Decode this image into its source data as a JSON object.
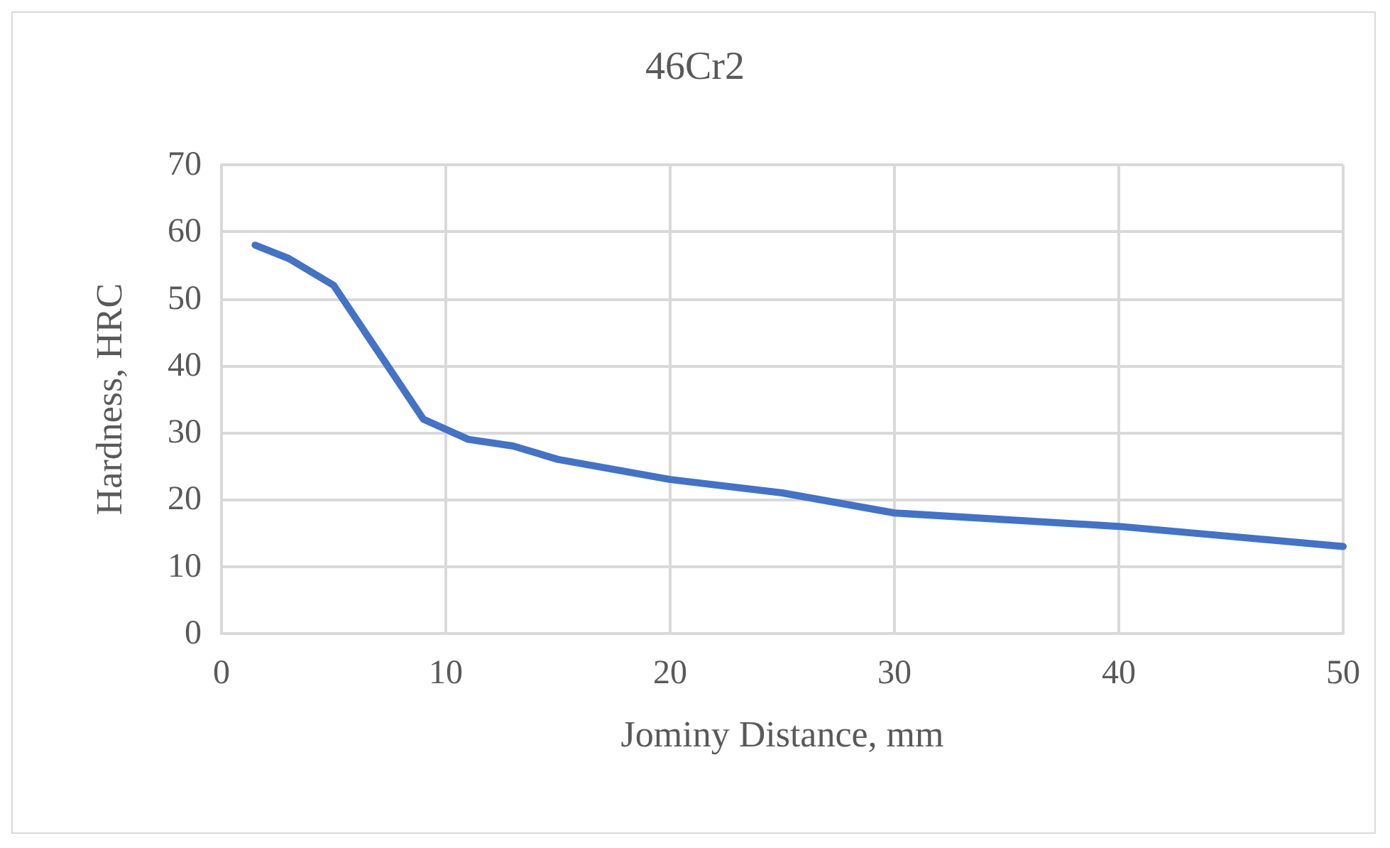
{
  "chart_data": {
    "type": "line",
    "title": "46Cr2",
    "xlabel": "Jominy Distance, mm",
    "ylabel": "Hardness, HRC",
    "x": [
      1.5,
      3,
      5,
      9,
      11,
      13,
      15,
      20,
      25,
      30,
      40,
      50
    ],
    "series": [
      {
        "color": "#4472c4",
        "values": [
          58,
          56,
          52,
          32,
          29,
          28,
          26,
          23,
          21,
          18,
          16,
          13
        ]
      }
    ],
    "xlim": [
      0,
      50
    ],
    "xticks": [
      0,
      10,
      20,
      30,
      40,
      50
    ],
    "ylim": [
      0,
      70
    ],
    "yticks": [
      0,
      10,
      20,
      30,
      40,
      50,
      60,
      70
    ],
    "grid": true,
    "marker": "none",
    "line_style": "solid"
  }
}
